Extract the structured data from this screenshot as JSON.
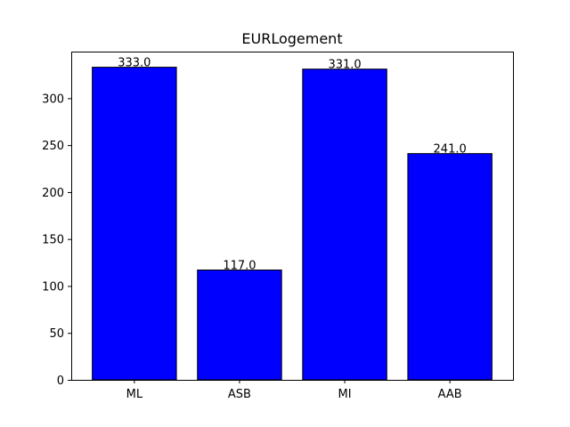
{
  "chart_data": {
    "type": "bar",
    "title": "EURLogement",
    "xlabel": "",
    "ylabel": "",
    "categories": [
      "ML",
      "ASB",
      "MI",
      "AAB"
    ],
    "values": [
      333.0,
      117.0,
      331.0,
      241.0
    ],
    "data_labels": [
      "333.0",
      "117.0",
      "331.0",
      "241.0"
    ],
    "ylim": [
      0,
      349.65
    ],
    "yticks": [
      0,
      50,
      100,
      150,
      200,
      250,
      300
    ],
    "ytick_labels": [
      "0",
      "50",
      "100",
      "150",
      "200",
      "250",
      "300"
    ],
    "grid": false,
    "legend": "none",
    "bar_color": "#0000ff",
    "bar_edge_color": "#000000"
  }
}
